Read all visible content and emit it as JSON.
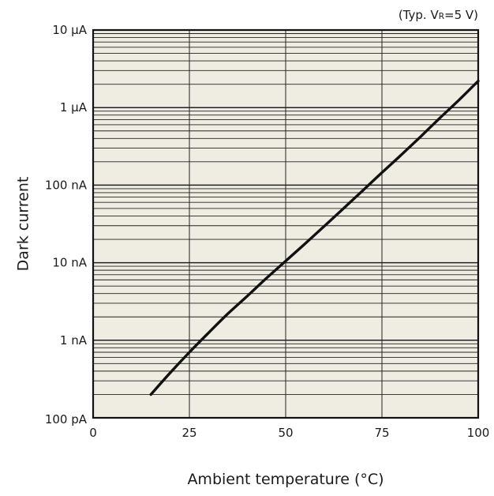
{
  "colors": {
    "plot_background": "#efede2",
    "grid": "#222222",
    "curve": "#111111",
    "frame": "#111111"
  },
  "chart_data": {
    "type": "line",
    "title": "",
    "condition_note": {
      "prefix": "(Typ. V",
      "subscript": "R",
      "suffix": "=5 V)"
    },
    "xlabel": "Ambient temperature (°C)",
    "ylabel": "Dark current",
    "x_unit": "°C",
    "y_unit": "A",
    "y_scale": "log",
    "xlim": [
      0,
      100
    ],
    "ylim": [
      1e-10,
      1e-05
    ],
    "grid": true,
    "x_ticks": [
      0,
      25,
      50,
      75,
      100
    ],
    "x_tick_labels": [
      "0",
      "25",
      "50",
      "75",
      "100"
    ],
    "y_ticks": [
      1e-10,
      1e-09,
      1e-08,
      1e-07,
      1e-06,
      1e-05
    ],
    "y_tick_labels": [
      "100 pA",
      "1 nA",
      "10 nA",
      "100 nA",
      "1 µA",
      "10 µA"
    ],
    "series": [
      {
        "x": [
          15,
          20,
          25,
          30,
          35,
          40,
          45,
          50,
          55,
          60,
          65,
          70,
          75,
          80,
          85,
          90,
          95,
          100
        ],
        "y": [
          2e-10,
          3.8e-10,
          7e-10,
          1.25e-09,
          2.2e-09,
          3.7e-09,
          6.3e-09,
          1.05e-08,
          1.75e-08,
          2.95e-08,
          5e-08,
          8.5e-08,
          1.45e-07,
          2.45e-07,
          4.2e-07,
          7.3e-07,
          1.25e-06,
          2.2e-06
        ]
      }
    ]
  }
}
